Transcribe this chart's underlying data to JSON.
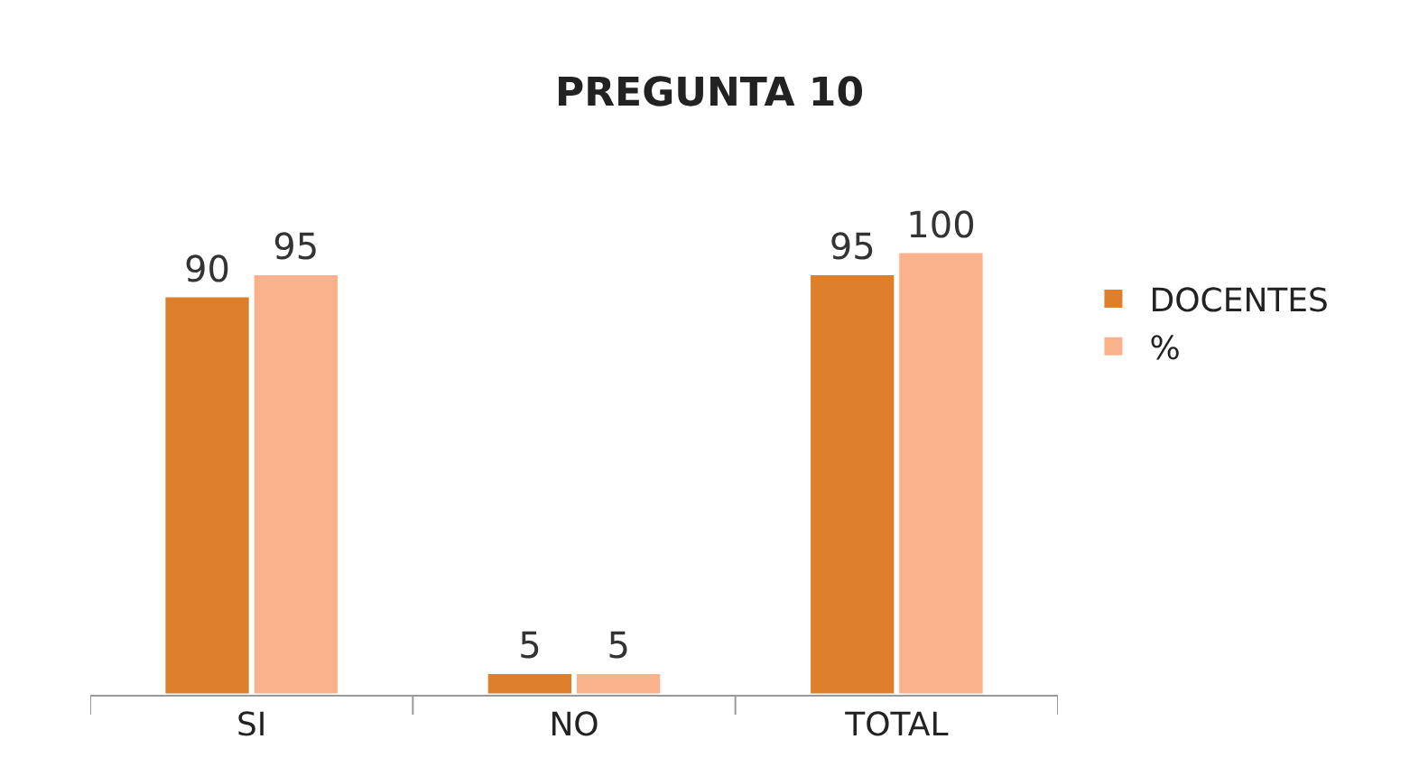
{
  "chart_data": {
    "type": "bar",
    "title": "PREGUNTA 10",
    "categories": [
      "SI",
      "NO",
      "TOTAL"
    ],
    "series": [
      {
        "name": "DOCENTES",
        "color": "#dd7f2b",
        "values": [
          90,
          5,
          95
        ]
      },
      {
        "name": "%",
        "color": "#f9b28b",
        "values": [
          95,
          5,
          100
        ]
      }
    ],
    "data_labels": true,
    "legend": "right"
  }
}
